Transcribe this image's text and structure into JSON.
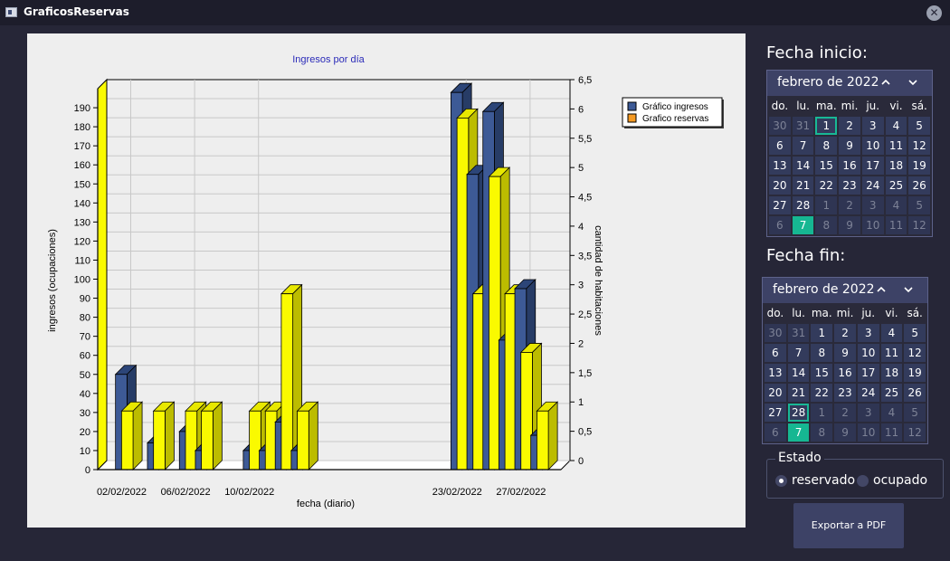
{
  "window": {
    "title": "GraficosReservas",
    "close_label": "✕"
  },
  "chart_data": {
    "type": "bar",
    "title": "Ingresos por día",
    "xlabel": "fecha (diario)",
    "ylabel": "ingresos (ocupaciones)",
    "y2label": "cantidad de habitaciones",
    "x_tick_labels": [
      "02/02/2022",
      "06/02/2022",
      "10/02/2022",
      "23/02/2022",
      "27/02/2022"
    ],
    "x_tick_slots": [
      1,
      5,
      9,
      22,
      26
    ],
    "slots": 29,
    "ylim": [
      0,
      200
    ],
    "y_ticks": [
      0,
      10,
      20,
      30,
      40,
      50,
      60,
      70,
      80,
      90,
      100,
      110,
      120,
      130,
      140,
      150,
      160,
      170,
      180,
      190
    ],
    "y2lim": [
      0,
      6.5
    ],
    "y2_ticks": [
      "0",
      "0,5",
      "1",
      "1,5",
      "2",
      "2,5",
      "3",
      "3,5",
      "4",
      "4,5",
      "5",
      "5,5",
      "6",
      "6,5"
    ],
    "legend_position": "top-right",
    "grid": true,
    "series": [
      {
        "name": "Gráfico ingresos",
        "color": "#3d5a96",
        "axis": "left",
        "points": [
          [
            1,
            50
          ],
          [
            3,
            14
          ],
          [
            5,
            20
          ],
          [
            6,
            10
          ],
          [
            9,
            10
          ],
          [
            10,
            10
          ],
          [
            11,
            25
          ],
          [
            12,
            10
          ],
          [
            22,
            198
          ],
          [
            23,
            155
          ],
          [
            24,
            188
          ],
          [
            25,
            68
          ],
          [
            26,
            95
          ],
          [
            27,
            18
          ]
        ]
      },
      {
        "name": "Grafico reservas",
        "color": "#fafa00",
        "axis": "right",
        "points": [
          [
            1,
            1
          ],
          [
            3,
            1
          ],
          [
            5,
            1
          ],
          [
            6,
            1
          ],
          [
            9,
            1
          ],
          [
            10,
            1
          ],
          [
            11,
            3
          ],
          [
            12,
            1
          ],
          [
            22,
            6
          ],
          [
            23,
            3
          ],
          [
            24,
            5
          ],
          [
            25,
            3
          ],
          [
            26,
            2
          ],
          [
            27,
            1
          ]
        ]
      }
    ]
  },
  "fecha_inicio": {
    "label": "Fecha inicio:",
    "month": "febrero de 2022",
    "prev_icon": "chevron-up",
    "next_icon": "chevron-down",
    "dows": [
      "do.",
      "lu.",
      "ma.",
      "mi.",
      "ju.",
      "vi.",
      "sá."
    ],
    "weeks": [
      [
        "30",
        "31",
        "1",
        "2",
        "3",
        "4",
        "5"
      ],
      [
        "6",
        "7",
        "8",
        "9",
        "10",
        "11",
        "12"
      ],
      [
        "13",
        "14",
        "15",
        "16",
        "17",
        "18",
        "19"
      ],
      [
        "20",
        "21",
        "22",
        "23",
        "24",
        "25",
        "26"
      ],
      [
        "27",
        "28",
        "1",
        "2",
        "3",
        "4",
        "5"
      ],
      [
        "6",
        "7",
        "8",
        "9",
        "10",
        "11",
        "12"
      ]
    ],
    "selected_day": "1",
    "today": "7"
  },
  "fecha_fin": {
    "label": "Fecha fin:",
    "month": "febrero de 2022",
    "prev_icon": "chevron-up",
    "next_icon": "chevron-down",
    "dows": [
      "do.",
      "lu.",
      "ma.",
      "mi.",
      "ju.",
      "vi.",
      "sá."
    ],
    "weeks": [
      [
        "30",
        "31",
        "1",
        "2",
        "3",
        "4",
        "5"
      ],
      [
        "6",
        "7",
        "8",
        "9",
        "10",
        "11",
        "12"
      ],
      [
        "13",
        "14",
        "15",
        "16",
        "17",
        "18",
        "19"
      ],
      [
        "20",
        "21",
        "22",
        "23",
        "24",
        "25",
        "26"
      ],
      [
        "27",
        "28",
        "1",
        "2",
        "3",
        "4",
        "5"
      ],
      [
        "6",
        "7",
        "8",
        "9",
        "10",
        "11",
        "12"
      ]
    ],
    "selected_day": "28",
    "today": "7"
  },
  "estado": {
    "title": "Estado",
    "options": [
      {
        "label": "reservado",
        "checked": true
      },
      {
        "label": "ocupado",
        "checked": false
      }
    ]
  },
  "export_label": "Exportar a PDF"
}
